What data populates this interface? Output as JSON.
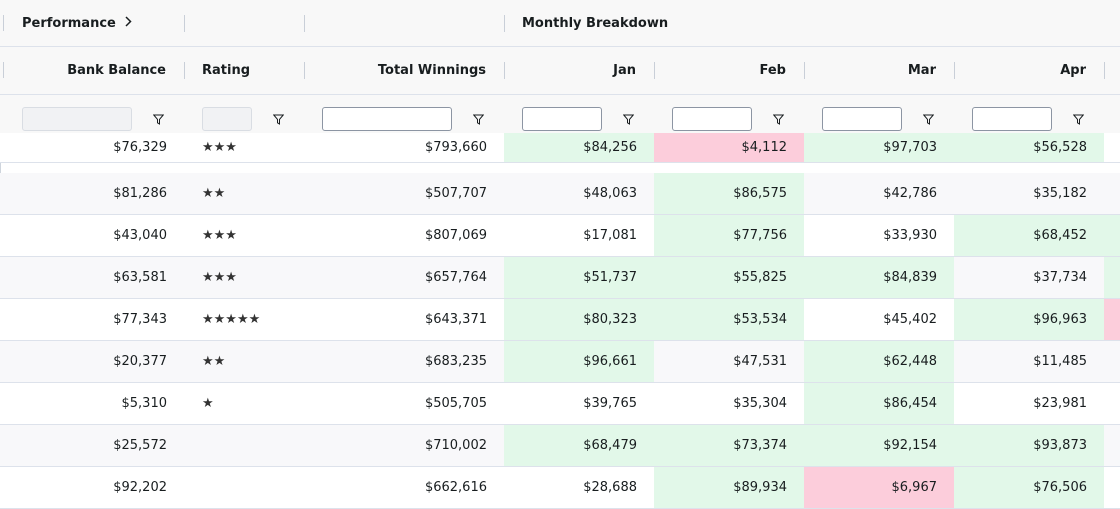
{
  "header_groups": {
    "performance": "Performance",
    "monthly": "Monthly Breakdown"
  },
  "columns": {
    "bank_balance": "Bank Balance",
    "rating": "Rating",
    "total_winnings": "Total Winnings",
    "jan": "Jan",
    "feb": "Feb",
    "mar": "Mar",
    "apr": "Apr"
  },
  "colors": {
    "positive": "#e2f8e9",
    "negative": "#fccddb"
  },
  "rows": [
    {
      "bank": "$76,329",
      "rating": "★★★",
      "total": "$793,660",
      "jan": "$84,256",
      "feb": "$4,112",
      "mar": "$97,703",
      "apr": "$56,528"
    },
    {
      "bank": "$81,286",
      "rating": "★★",
      "total": "$507,707",
      "jan": "$48,063",
      "feb": "$86,575",
      "mar": "$42,786",
      "apr": "$35,182"
    },
    {
      "bank": "$43,040",
      "rating": "★★★",
      "total": "$807,069",
      "jan": "$17,081",
      "feb": "$77,756",
      "mar": "$33,930",
      "apr": "$68,452"
    },
    {
      "bank": "$63,581",
      "rating": "★★★",
      "total": "$657,764",
      "jan": "$51,737",
      "feb": "$55,825",
      "mar": "$84,839",
      "apr": "$37,734"
    },
    {
      "bank": "$77,343",
      "rating": "★★★★★",
      "total": "$643,371",
      "jan": "$80,323",
      "feb": "$53,534",
      "mar": "$45,402",
      "apr": "$96,963"
    },
    {
      "bank": "$20,377",
      "rating": "★★",
      "total": "$683,235",
      "jan": "$96,661",
      "feb": "$47,531",
      "mar": "$62,448",
      "apr": "$11,485"
    },
    {
      "bank": "$5,310",
      "rating": "★",
      "total": "$505,705",
      "jan": "$39,765",
      "feb": "$35,304",
      "mar": "$86,454",
      "apr": "$23,981"
    },
    {
      "bank": "$25,572",
      "rating": "",
      "total": "$710,002",
      "jan": "$68,479",
      "feb": "$73,374",
      "mar": "$92,154",
      "apr": "$93,873"
    },
    {
      "bank": "$92,202",
      "rating": "",
      "total": "$662,616",
      "jan": "$28,688",
      "feb": "$89,934",
      "mar": "$6,967",
      "apr": "$76,506"
    }
  ]
}
